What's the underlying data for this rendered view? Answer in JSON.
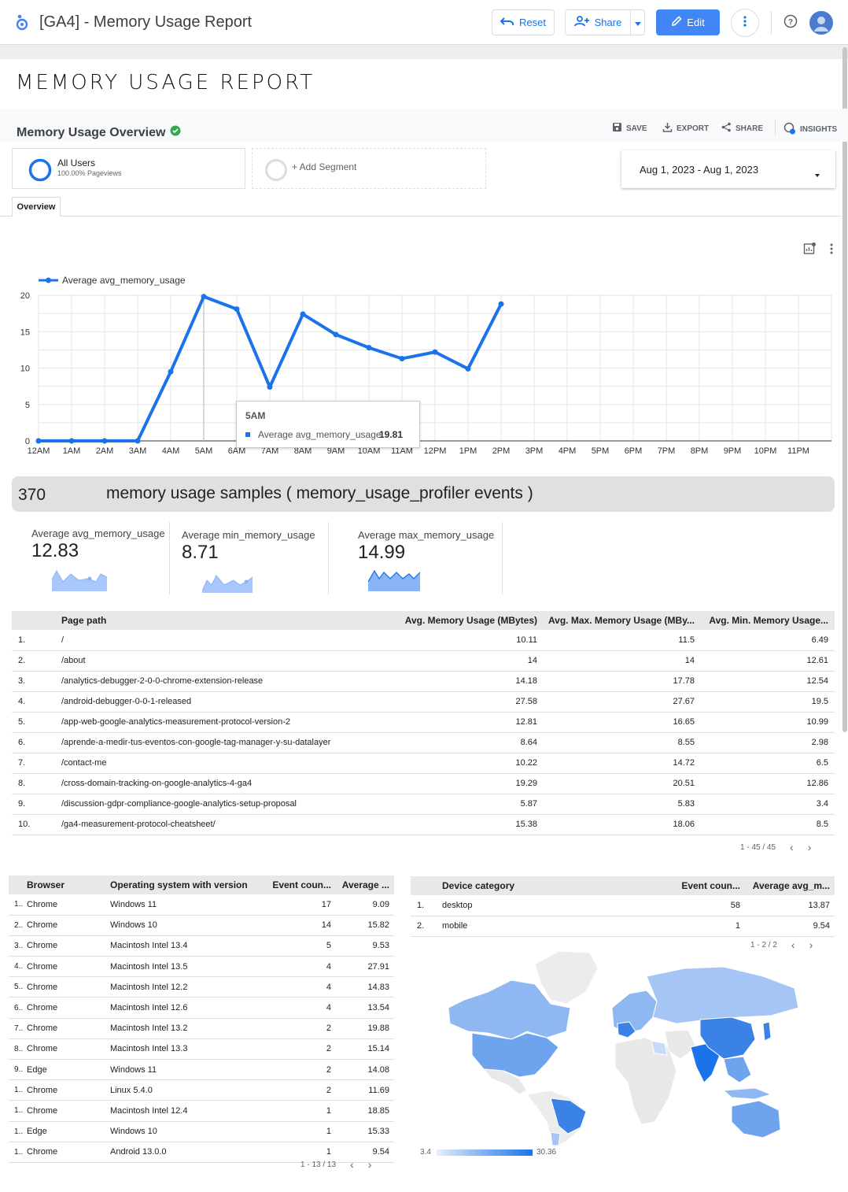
{
  "app": {
    "title": "[GA4] - Memory Usage Report"
  },
  "toolbar": {
    "reset_label": "Reset",
    "share_label": "Share",
    "edit_label": "Edit"
  },
  "report": {
    "title": "MEMORY USAGE REPORT"
  },
  "overview": {
    "title": "Memory Usage Overview",
    "actions": {
      "save": "SAVE",
      "export": "EXPORT",
      "share": "SHARE",
      "insights": "INSIGHTS"
    },
    "segment": {
      "name": "All Users",
      "sub": "100.00% Pageviews",
      "add": "+ Add Segment"
    },
    "date_range": "Aug 1, 2023 - Aug 1, 2023",
    "tab": "Overview"
  },
  "colors": {
    "accent": "#1a73e8",
    "line": "#1a73e8",
    "edit_button": "#4285f4",
    "verified": "#34a853"
  },
  "chart_data": {
    "type": "line",
    "legend": "Average avg_memory_usage",
    "categories": [
      "12AM",
      "1AM",
      "2AM",
      "3AM",
      "4AM",
      "5AM",
      "6AM",
      "7AM",
      "8AM",
      "9AM",
      "10AM",
      "11AM",
      "12PM",
      "1PM",
      "2PM",
      "3PM",
      "4PM",
      "5PM",
      "6PM",
      "7PM",
      "8PM",
      "9PM",
      "10PM",
      "11PM"
    ],
    "values": [
      0,
      0,
      0,
      0,
      9.5,
      19.81,
      18.1,
      7.4,
      17.4,
      14.6,
      12.8,
      11.3,
      12.2,
      9.9,
      18.8,
      null,
      null,
      null,
      null,
      null,
      null,
      null,
      null,
      null
    ],
    "yticks": [
      "0",
      "5",
      "10",
      "15",
      "20"
    ],
    "ylim": [
      0,
      20
    ],
    "grid": true,
    "tooltip": {
      "title": "5AM",
      "label": "Average avg_memory_usage:",
      "value": "19.81"
    }
  },
  "banner": {
    "count": "370",
    "text": "memory usage samples ( memory_usage_profiler events  )"
  },
  "kpis": [
    {
      "label": "Average avg_memory_usage",
      "value": "12.83"
    },
    {
      "label": "Average min_memory_usage",
      "value": "8.71"
    },
    {
      "label": "Average max_memory_usage",
      "value": "14.99"
    }
  ],
  "pages_table": {
    "headers": [
      "Page path",
      "Avg. Memory Usage (MBytes)",
      "Avg. Max. Memory Usage (MBy...",
      "Avg. Min. Memory Usage..."
    ],
    "rows": [
      [
        "1.",
        "/",
        "10.11",
        "11.5",
        "6.49"
      ],
      [
        "2.",
        "/about",
        "14",
        "14",
        "12.61"
      ],
      [
        "3.",
        "/analytics-debugger-2-0-0-chrome-extension-release",
        "14.18",
        "17.78",
        "12.54"
      ],
      [
        "4.",
        "/android-debugger-0-0-1-released",
        "27.58",
        "27.67",
        "19.5"
      ],
      [
        "5.",
        "/app-web-google-analytics-measurement-protocol-version-2",
        "12.81",
        "16.65",
        "10.99"
      ],
      [
        "6.",
        "/aprende-a-medir-tus-eventos-con-google-tag-manager-y-su-datalayer",
        "8.64",
        "8.55",
        "2.98"
      ],
      [
        "7.",
        "/contact-me",
        "10.22",
        "14.72",
        "6.5"
      ],
      [
        "8.",
        "/cross-domain-tracking-on-google-analytics-4-ga4",
        "19.29",
        "20.51",
        "12.86"
      ],
      [
        "9.",
        "/discussion-gdpr-compliance-google-analytics-setup-proposal",
        "5.87",
        "5.83",
        "3.4"
      ],
      [
        "10.",
        "/ga4-measurement-protocol-cheatsheet/",
        "15.38",
        "18.06",
        "8.5"
      ]
    ],
    "pager": "1 - 45 / 45"
  },
  "browser_table": {
    "headers": [
      "Browser",
      "Operating system with version",
      "Event coun...",
      "Average ..."
    ],
    "rows": [
      [
        "1..",
        "Chrome",
        "Windows 11",
        "17",
        "9.09"
      ],
      [
        "2..",
        "Chrome",
        "Windows 10",
        "14",
        "15.82"
      ],
      [
        "3..",
        "Chrome",
        "Macintosh Intel 13.4",
        "5",
        "9.53"
      ],
      [
        "4..",
        "Chrome",
        "Macintosh Intel 13.5",
        "4",
        "27.91"
      ],
      [
        "5..",
        "Chrome",
        "Macintosh Intel 12.2",
        "4",
        "14.83"
      ],
      [
        "6..",
        "Chrome",
        "Macintosh Intel 12.6",
        "4",
        "13.54"
      ],
      [
        "7..",
        "Chrome",
        "Macintosh Intel 13.2",
        "2",
        "19.88"
      ],
      [
        "8..",
        "Chrome",
        "Macintosh Intel 13.3",
        "2",
        "15.14"
      ],
      [
        "9..",
        "Edge",
        "Windows 11",
        "2",
        "14.08"
      ],
      [
        "1..",
        "Chrome",
        "Linux 5.4.0",
        "2",
        "11.69"
      ],
      [
        "1..",
        "Chrome",
        "Macintosh Intel 12.4",
        "1",
        "18.85"
      ],
      [
        "1..",
        "Edge",
        "Windows 10",
        "1",
        "15.33"
      ],
      [
        "1..",
        "Chrome",
        "Android 13.0.0",
        "1",
        "9.54"
      ]
    ],
    "pager": "1 - 13 / 13"
  },
  "device_table": {
    "headers": [
      "Device category",
      "Event coun...",
      "Average avg_m..."
    ],
    "rows": [
      [
        "1.",
        "desktop",
        "58",
        "13.87"
      ],
      [
        "2.",
        "mobile",
        "1",
        "9.54"
      ]
    ],
    "pager": "1 - 2 / 2"
  },
  "map": {
    "legend_min": "3.4",
    "legend_max": "30.36"
  }
}
